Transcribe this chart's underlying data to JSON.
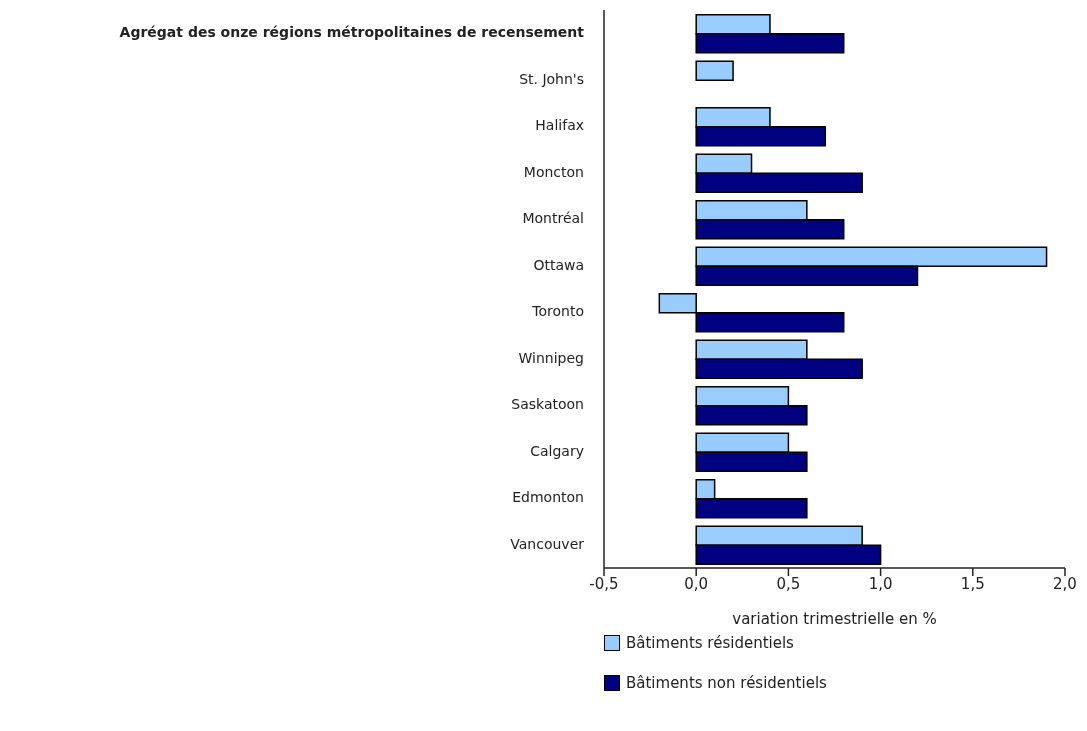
{
  "chart_data": {
    "type": "bar",
    "orientation": "horizontal",
    "xlabel": "variation trimestrielle en %",
    "categories": [
      "Agrégat des onze régions métropolitaines de recensement",
      "St. John's",
      "Halifax",
      "Moncton",
      "Montréal",
      "Ottawa",
      "Toronto",
      "Winnipeg",
      "Saskatoon",
      "Calgary",
      "Edmonton",
      "Vancouver"
    ],
    "series": [
      {
        "name": "Bâtiments résidentiels",
        "color": "#99ccff",
        "values": [
          0.4,
          0.2,
          0.4,
          0.3,
          0.6,
          1.9,
          -0.2,
          0.6,
          0.5,
          0.5,
          0.1,
          0.9
        ]
      },
      {
        "name": "Bâtiments non résidentiels",
        "color": "#000080",
        "values": [
          0.8,
          0.0,
          0.7,
          0.9,
          0.8,
          1.2,
          0.8,
          0.9,
          0.6,
          0.6,
          0.6,
          1.0
        ]
      }
    ],
    "xlim": [
      -0.5,
      2.0
    ],
    "xticks": [
      {
        "value": -0.5,
        "label": "-0,5"
      },
      {
        "value": 0,
        "label": "0,0"
      },
      {
        "value": 0.5,
        "label": "0,5"
      },
      {
        "value": 1,
        "label": "1,0"
      },
      {
        "value": 1.5,
        "label": "1,5"
      },
      {
        "value": 2,
        "label": "2,0"
      }
    ],
    "grid": false,
    "legend": "bottom"
  }
}
